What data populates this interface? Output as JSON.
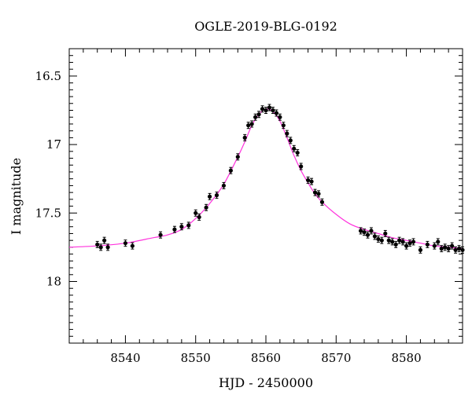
{
  "chart_data": {
    "type": "scatter",
    "title": "OGLE-2019-BLG-0192",
    "xlabel": "HJD - 2450000",
    "ylabel": "I magnitude",
    "xlim": [
      8532,
      8588
    ],
    "ylim": [
      18.45,
      16.3
    ],
    "y_inverted": true,
    "x_ticks": [
      8540,
      8550,
      8560,
      8570,
      8580
    ],
    "y_ticks": [
      16.5,
      17,
      17.5,
      18
    ],
    "grid": false,
    "model_color": "#ff33dd",
    "point_color": "#000000",
    "model": {
      "name": "",
      "points": [
        [
          8532,
          17.75
        ],
        [
          8536,
          17.74
        ],
        [
          8540,
          17.72
        ],
        [
          8544,
          17.68
        ],
        [
          8546,
          17.66
        ],
        [
          8548,
          17.62
        ],
        [
          8550,
          17.54
        ],
        [
          8552,
          17.43
        ],
        [
          8554,
          17.29
        ],
        [
          8556,
          17.09
        ],
        [
          8557,
          16.98
        ],
        [
          8558,
          16.86
        ],
        [
          8559,
          16.78
        ],
        [
          8560,
          16.74
        ],
        [
          8561,
          16.76
        ],
        [
          8562,
          16.83
        ],
        [
          8563,
          16.95
        ],
        [
          8564,
          17.08
        ],
        [
          8565,
          17.19
        ],
        [
          8566,
          17.28
        ],
        [
          8567,
          17.36
        ],
        [
          8568,
          17.42
        ],
        [
          8570,
          17.51
        ],
        [
          8572,
          17.58
        ],
        [
          8574,
          17.62
        ],
        [
          8576,
          17.65
        ],
        [
          8578,
          17.68
        ],
        [
          8580,
          17.7
        ],
        [
          8582,
          17.72
        ],
        [
          8584,
          17.74
        ],
        [
          8586,
          17.75
        ],
        [
          8588,
          17.76
        ]
      ]
    },
    "series": [
      {
        "name": "",
        "points": [
          [
            8536.0,
            17.73
          ],
          [
            8536.5,
            17.75
          ],
          [
            8537.0,
            17.7
          ],
          [
            8537.5,
            17.75
          ],
          [
            8540.0,
            17.72
          ],
          [
            8541.0,
            17.74
          ],
          [
            8545.0,
            17.66
          ],
          [
            8547.0,
            17.62
          ],
          [
            8548.0,
            17.6
          ],
          [
            8549.0,
            17.59
          ],
          [
            8550.0,
            17.5
          ],
          [
            8550.5,
            17.53
          ],
          [
            8551.5,
            17.46
          ],
          [
            8552.0,
            17.38
          ],
          [
            8553.0,
            17.37
          ],
          [
            8554.0,
            17.3
          ],
          [
            8555.0,
            17.19
          ],
          [
            8556.0,
            17.09
          ],
          [
            8557.0,
            16.95
          ],
          [
            8557.5,
            16.86
          ],
          [
            8558.0,
            16.85
          ],
          [
            8558.5,
            16.8
          ],
          [
            8559.0,
            16.78
          ],
          [
            8559.5,
            16.74
          ],
          [
            8560.0,
            16.75
          ],
          [
            8560.5,
            16.73
          ],
          [
            8561.0,
            16.75
          ],
          [
            8561.5,
            16.77
          ],
          [
            8562.0,
            16.8
          ],
          [
            8562.5,
            16.86
          ],
          [
            8563.0,
            16.92
          ],
          [
            8563.5,
            16.97
          ],
          [
            8564.0,
            17.03
          ],
          [
            8564.5,
            17.06
          ],
          [
            8565.0,
            17.16
          ],
          [
            8566.0,
            17.26
          ],
          [
            8566.5,
            17.27
          ],
          [
            8567.0,
            17.35
          ],
          [
            8567.5,
            17.36
          ],
          [
            8568.0,
            17.42
          ],
          [
            8573.5,
            17.63
          ],
          [
            8574.0,
            17.64
          ],
          [
            8574.5,
            17.66
          ],
          [
            8575.0,
            17.63
          ],
          [
            8575.5,
            17.67
          ],
          [
            8576.0,
            17.69
          ],
          [
            8576.5,
            17.7
          ],
          [
            8577.0,
            17.65
          ],
          [
            8577.5,
            17.7
          ],
          [
            8578.0,
            17.71
          ],
          [
            8578.5,
            17.73
          ],
          [
            8579.0,
            17.7
          ],
          [
            8579.5,
            17.71
          ],
          [
            8580.0,
            17.74
          ],
          [
            8580.5,
            17.72
          ],
          [
            8581.0,
            17.71
          ],
          [
            8582.0,
            17.77
          ],
          [
            8583.0,
            17.73
          ],
          [
            8584.0,
            17.74
          ],
          [
            8584.5,
            17.71
          ],
          [
            8585.0,
            17.76
          ],
          [
            8585.5,
            17.75
          ],
          [
            8586.0,
            17.76
          ],
          [
            8586.5,
            17.74
          ],
          [
            8587.0,
            17.77
          ],
          [
            8587.5,
            17.76
          ],
          [
            8588.0,
            17.77
          ]
        ]
      }
    ]
  }
}
